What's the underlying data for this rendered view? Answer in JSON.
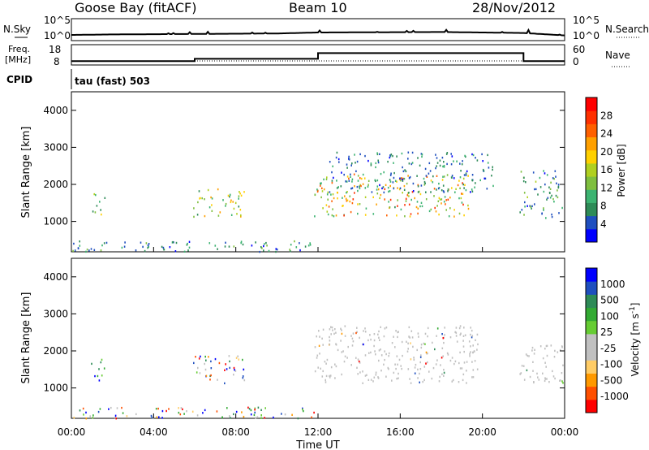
{
  "header": {
    "title": "Goose Bay (fitACF)",
    "beam": "Beam 10",
    "date": "28/Nov/2012"
  },
  "panels": {
    "nsky": {
      "left_label": "N.Sky",
      "right_label": "N.Search",
      "left_ticks": [
        "10^5",
        "10^0"
      ],
      "right_ticks": [
        "10^5",
        "10^0"
      ]
    },
    "freq": {
      "left_label_1": "Freq.",
      "left_label_2": "[MHz]",
      "right_label": "Nave",
      "left_ticks": [
        "18",
        "8"
      ],
      "right_ticks": [
        "60",
        "0"
      ]
    },
    "cpid": {
      "label": "CPID",
      "value": "tau (fast) 503"
    }
  },
  "colors": {
    "power": [
      "#0000ff",
      "#1f4fbf",
      "#2e8b57",
      "#3cb371",
      "#7fbf3f",
      "#b0d020",
      "#ffd000",
      "#ffa000",
      "#ff6000",
      "#ff3000",
      "#ff0000"
    ],
    "velocity": [
      "#ff0000",
      "#ff5000",
      "#ff9900",
      "#ffcc66",
      "#c0c0c0",
      "#c0c0c0",
      "#66cc33",
      "#33aa33",
      "#2e8b57",
      "#1f4fbf",
      "#0000ff"
    ]
  },
  "chart_data": [
    {
      "type": "heatmap",
      "name": "power",
      "ylabel": "Slant Range [km]",
      "yticks": [
        "1000",
        "2000",
        "3000",
        "4000"
      ],
      "ylim": [
        180,
        4500
      ],
      "xlim": [
        0,
        24
      ],
      "colorbar_label": "Power [dB]",
      "colorbar_ticks": [
        "4",
        "8",
        "12",
        "16",
        "20",
        "24",
        "28"
      ],
      "clim": [
        0,
        30
      ],
      "regions": [
        {
          "t0": 0.0,
          "t1": 11.8,
          "r0": 200,
          "r1": 500,
          "vmin": 2,
          "vmax": 12
        },
        {
          "t0": 0.9,
          "t1": 1.6,
          "r0": 1200,
          "r1": 1800,
          "vmin": 4,
          "vmax": 18
        },
        {
          "t0": 5.9,
          "t1": 8.4,
          "r0": 1150,
          "r1": 1900,
          "vmin": 4,
          "vmax": 20
        },
        {
          "t0": 11.8,
          "t1": 19.5,
          "r0": 1150,
          "r1": 2300,
          "vmin": 8,
          "vmax": 26
        },
        {
          "t0": 12.5,
          "t1": 20.5,
          "r0": 1800,
          "r1": 2900,
          "vmin": 2,
          "vmax": 10
        },
        {
          "t0": 21.8,
          "t1": 23.9,
          "r0": 1100,
          "r1": 2400,
          "vmin": 2,
          "vmax": 14
        }
      ]
    },
    {
      "type": "heatmap",
      "name": "velocity",
      "ylabel": "Slant Range [km]",
      "yticks": [
        "1000",
        "2000",
        "3000",
        "4000"
      ],
      "ylim": [
        180,
        4500
      ],
      "xlim": [
        0,
        24
      ],
      "xticks": [
        "00:00",
        "04:00",
        "08:00",
        "12:00",
        "16:00",
        "20:00",
        "00:00"
      ],
      "xlabel": "Time UT",
      "colorbar_label": "Velocity [m s^-1]",
      "colorbar_ticks": [
        "1000",
        "500",
        "100",
        "25",
        "-25",
        "-100",
        "-500",
        "-1000"
      ],
      "clim": [
        -1000,
        1000
      ],
      "regions": [
        {
          "t0": 0.0,
          "t1": 11.8,
          "r0": 200,
          "r1": 500,
          "mode": "mixed"
        },
        {
          "t0": 0.9,
          "t1": 1.6,
          "r0": 1200,
          "r1": 1800,
          "mode": "positive"
        },
        {
          "t0": 5.9,
          "t1": 8.4,
          "r0": 1150,
          "r1": 1900,
          "mode": "mixed"
        },
        {
          "t0": 11.8,
          "t1": 19.8,
          "r0": 1150,
          "r1": 2700,
          "mode": "ground"
        },
        {
          "t0": 21.8,
          "t1": 23.9,
          "r0": 1100,
          "r1": 2200,
          "mode": "ground"
        }
      ]
    }
  ],
  "series": {
    "nsky_profile": [
      {
        "t": 0,
        "v": 0.25
      },
      {
        "t": 2,
        "v": 0.3
      },
      {
        "t": 6,
        "v": 0.35
      },
      {
        "t": 10,
        "v": 0.4
      },
      {
        "t": 12,
        "v": 0.5
      },
      {
        "t": 18,
        "v": 0.55
      },
      {
        "t": 22,
        "v": 0.45
      },
      {
        "t": 24,
        "v": 0.2
      }
    ],
    "freq_steps": [
      {
        "t0": 0,
        "t1": 6.0,
        "mhz": 10
      },
      {
        "t0": 6.0,
        "t1": 12.0,
        "mhz": 12
      },
      {
        "t0": 12.0,
        "t1": 22.0,
        "mhz": 17
      },
      {
        "t0": 22.0,
        "t1": 24.0,
        "mhz": 10
      }
    ]
  }
}
